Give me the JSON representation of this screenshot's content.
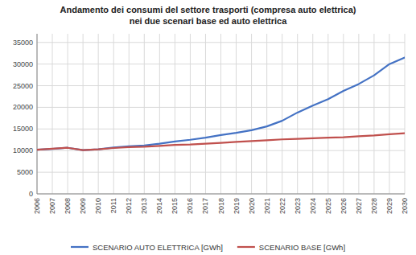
{
  "chart_data": {
    "type": "line",
    "title": "Andamento dei consumi del settore trasporti (compresa auto elettrica)",
    "subtitle": "nei due scenari base ed auto elettrica",
    "x": [
      2006,
      2007,
      2008,
      2009,
      2010,
      2011,
      2012,
      2013,
      2014,
      2015,
      2016,
      2017,
      2018,
      2019,
      2020,
      2021,
      2022,
      2023,
      2024,
      2025,
      2026,
      2027,
      2028,
      2029,
      2030
    ],
    "series": [
      {
        "name": "SCENARIO AUTO ELETTRICA [GWh]",
        "color": "#4472C4",
        "values": [
          10200,
          10400,
          10650,
          10100,
          10300,
          10700,
          11000,
          11200,
          11600,
          12100,
          12500,
          13000,
          13600,
          14100,
          14700,
          15600,
          16900,
          18800,
          20400,
          21900,
          23800,
          25400,
          27400,
          30000,
          31500
        ]
      },
      {
        "name": "SCENARIO BASE [GWh]",
        "color": "#C0504D",
        "values": [
          10200,
          10450,
          10650,
          10100,
          10300,
          10600,
          10800,
          10900,
          11100,
          11300,
          11400,
          11600,
          11800,
          12000,
          12200,
          12400,
          12600,
          12700,
          12850,
          13000,
          13100,
          13300,
          13500,
          13800,
          14000
        ]
      }
    ],
    "xlim": [
      2006,
      2030
    ],
    "xticks": [
      2006,
      2007,
      2008,
      2009,
      2010,
      2011,
      2012,
      2013,
      2014,
      2015,
      2016,
      2017,
      2018,
      2019,
      2020,
      2021,
      2022,
      2023,
      2024,
      2025,
      2026,
      2027,
      2028,
      2029,
      2030
    ],
    "ylim": [
      0,
      37000
    ],
    "yticks": [
      0,
      5000,
      10000,
      15000,
      20000,
      25000,
      30000,
      35000
    ],
    "grid": true,
    "legend": "bottom"
  }
}
